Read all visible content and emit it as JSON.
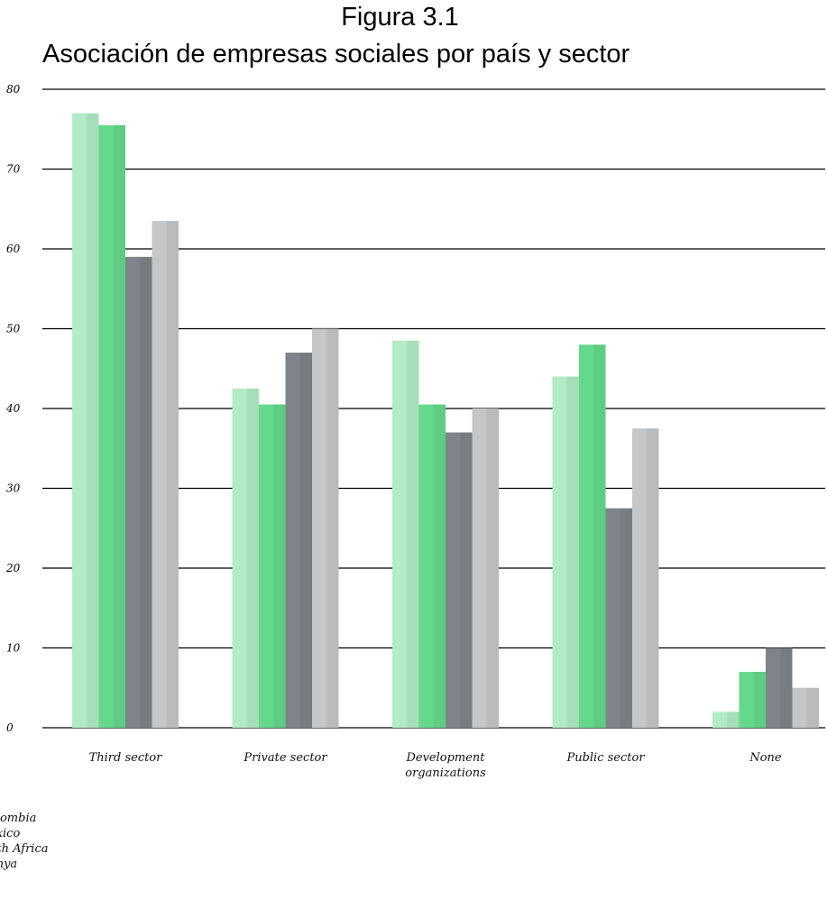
{
  "figure_label": "Figura 3.1",
  "chart_data": {
    "type": "bar",
    "title": "Asociación de empresas sociales por país y sector",
    "categories": [
      "Third sector",
      "Private sector",
      "Development organizations",
      "Public sector",
      "None"
    ],
    "category_lines": [
      [
        "Third sector"
      ],
      [
        "Private sector"
      ],
      [
        "Development",
        "organizations"
      ],
      [
        "Public sector"
      ],
      [
        "None"
      ]
    ],
    "series": [
      {
        "name": "Colombia",
        "values": [
          77,
          42.5,
          48.5,
          44,
          2
        ],
        "color": "#b2ebc6"
      },
      {
        "name": "Mexico",
        "values": [
          75.5,
          40.5,
          40.5,
          48,
          7
        ],
        "color": "#64d98c"
      },
      {
        "name": "South Africa",
        "values": [
          59,
          47,
          37,
          27.5,
          10
        ],
        "color": "#7e8489"
      },
      {
        "name": "Kenya",
        "values": [
          63.5,
          50,
          40,
          37.5,
          5
        ],
        "color": "#c4c6c8"
      }
    ],
    "ylim": [
      0,
      80
    ],
    "yticks": [
      0,
      10,
      20,
      30,
      40,
      50,
      60,
      70,
      80
    ],
    "xlabel": "",
    "ylabel": "",
    "grid": true,
    "legend_position": "bottom-left",
    "legend_labels": [
      "olombia",
      "exico",
      "uth Africa",
      "enya"
    ]
  }
}
